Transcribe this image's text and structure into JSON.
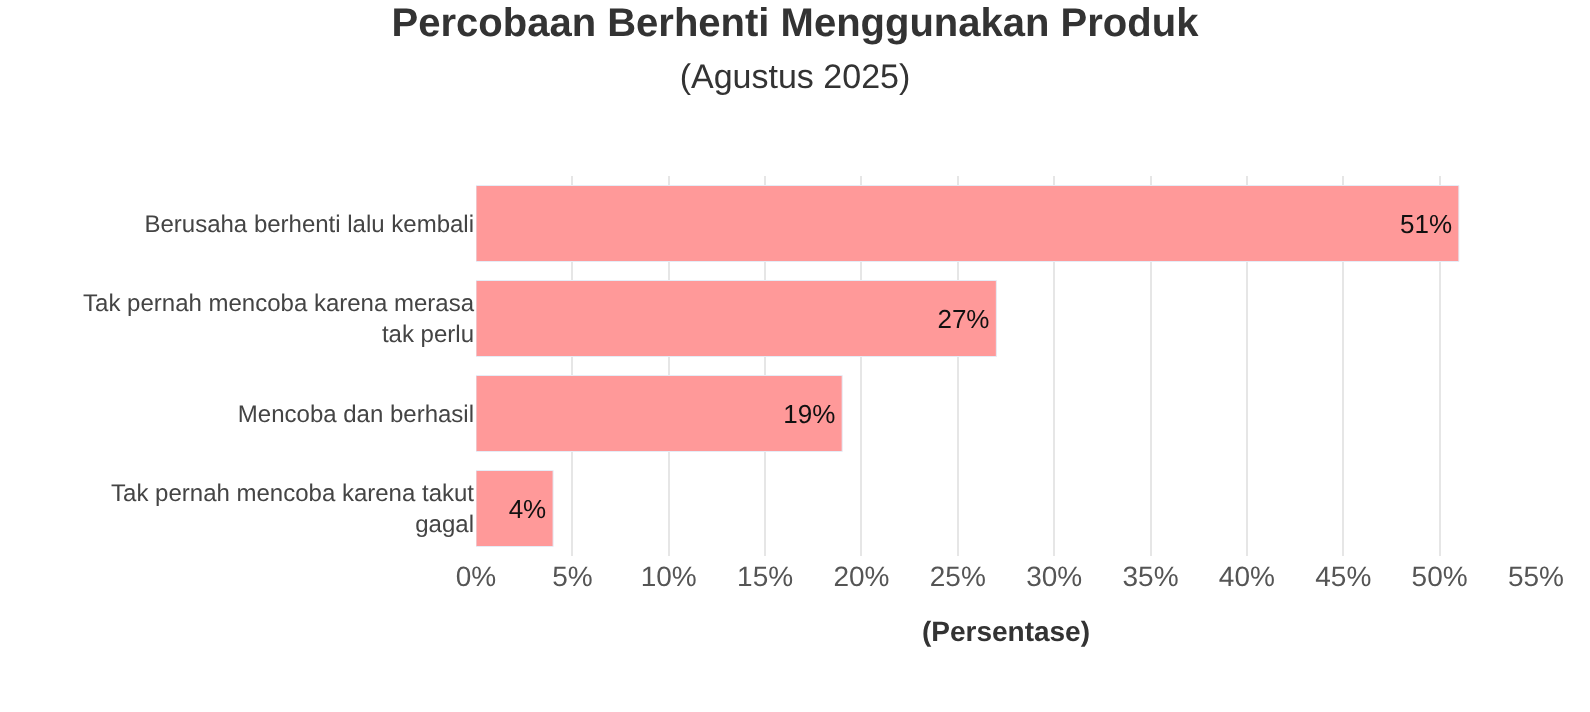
{
  "chart_data": {
    "type": "bar",
    "orientation": "horizontal",
    "title": "Percobaan Berhenti Menggunakan Produk",
    "subtitle": "(Agustus 2025)",
    "xlabel": "(Persentase)",
    "categories": [
      "Berusaha berhenti lalu kembali",
      "Tak pernah mencoba karena merasa tak perlu",
      "Mencoba dan berhasil",
      "Tak pernah mencoba karena takut gagal"
    ],
    "values": [
      51,
      27,
      19,
      4
    ],
    "value_labels": [
      "51%",
      "27%",
      "19%",
      "4%"
    ],
    "color": "#ff9999",
    "xlim": [
      0,
      55
    ],
    "xticks": [
      {
        "value": 0,
        "label": "0%"
      },
      {
        "value": 5,
        "label": "5%"
      },
      {
        "value": 10,
        "label": "10%"
      },
      {
        "value": 15,
        "label": "15%"
      },
      {
        "value": 20,
        "label": "20%"
      },
      {
        "value": 25,
        "label": "25%"
      },
      {
        "value": 30,
        "label": "30%"
      },
      {
        "value": 35,
        "label": "35%"
      },
      {
        "value": 40,
        "label": "40%"
      },
      {
        "value": 45,
        "label": "45%"
      },
      {
        "value": 50,
        "label": "50%"
      },
      {
        "value": 55,
        "label": "55%"
      }
    ],
    "grid": "x",
    "legend": false
  }
}
